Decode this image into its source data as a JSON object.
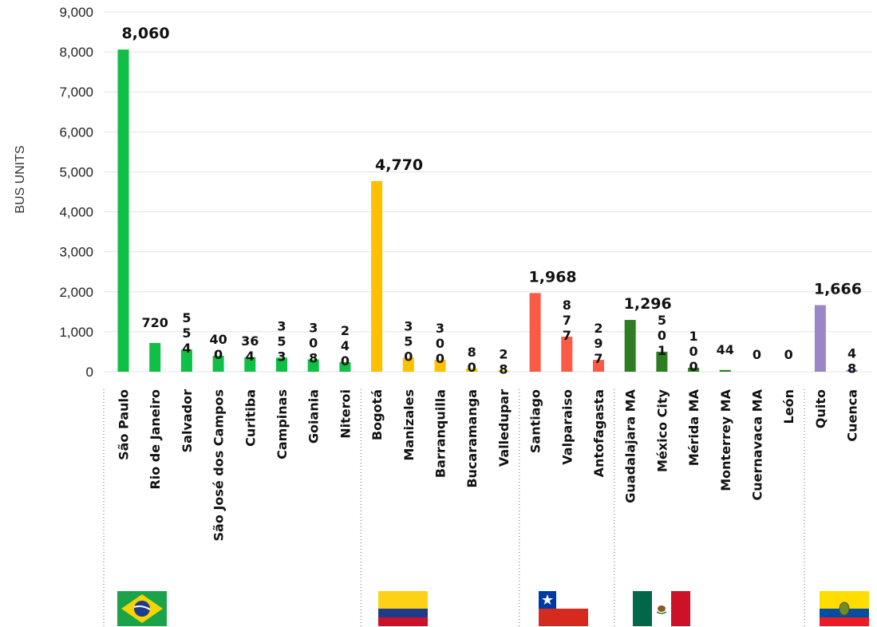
{
  "chart_data": {
    "type": "bar",
    "title": "",
    "xlabel": "",
    "ylabel": "BUS UNITS",
    "ylim": [
      0,
      9000
    ],
    "yticks": [
      "0",
      "1,000",
      "2,000",
      "3,000",
      "4,000",
      "5,000",
      "6,000",
      "7,000",
      "8,000",
      "9,000"
    ],
    "ytick_values": [
      0,
      1000,
      2000,
      3000,
      4000,
      5000,
      6000,
      7000,
      8000,
      9000
    ],
    "grid": true,
    "legend": "none",
    "groups": [
      {
        "flag": "brazil-flag",
        "color": "#10BF46",
        "categories": [
          "São Paulo",
          "Rio de Janeiro",
          "Salvador",
          "São José dos Campos",
          "Curitiba",
          "Campinas",
          "Goiania",
          "Niteroi"
        ],
        "values": [
          8060,
          720,
          554,
          400,
          364,
          353,
          308,
          240
        ],
        "labels": [
          "8,060",
          "720",
          "5\n5\n4",
          "40\n0",
          "36\n4",
          "3\n5\n3",
          "3\n0\n8",
          "2\n4\n0"
        ]
      },
      {
        "flag": "colombia-flag",
        "color": "#FFC000",
        "categories": [
          "Bogotá",
          "Manizales",
          "Barranquilla",
          "Bucaramanga",
          "Valledupar"
        ],
        "values": [
          4770,
          350,
          300,
          80,
          28
        ],
        "labels": [
          "4,770",
          "3\n5\n0",
          "3\n0\n0",
          "8\n0",
          "2\n8"
        ]
      },
      {
        "flag": "chile-flag",
        "color": "#FA5A46",
        "categories": [
          "Santiago",
          "Valparaiso",
          "Antofagasta"
        ],
        "values": [
          1968,
          877,
          297
        ],
        "labels": [
          "1,968",
          "8\n7\n7",
          "2\n9\n7"
        ]
      },
      {
        "flag": "mexico-flag",
        "color": "#2E7D23",
        "categories": [
          "Guadalajara MA",
          "México City",
          "Mérida MA",
          "Monterrey MA",
          "Cuernavaca MA",
          "León"
        ],
        "values": [
          1296,
          501,
          100,
          44,
          0,
          0
        ],
        "labels": [
          "1,296",
          "5\n0\n1",
          "1\n0\n0",
          "44",
          "0",
          "0"
        ]
      },
      {
        "flag": "ecuador-flag",
        "color": "#9B87C8",
        "categories": [
          "Quito",
          "Cuenca"
        ],
        "values": [
          1666,
          48
        ],
        "labels": [
          "1,666",
          "4\n8"
        ]
      }
    ]
  }
}
